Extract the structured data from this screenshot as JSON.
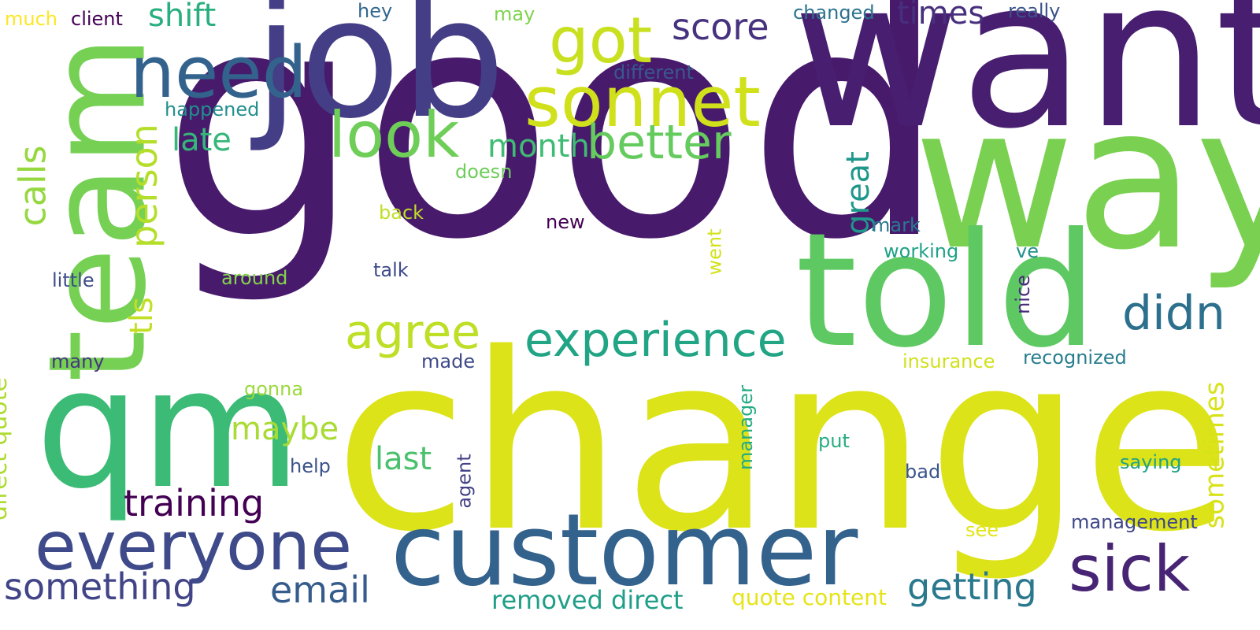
{
  "background": "#ffffff",
  "words": [
    {
      "text": "good",
      "color": "#481a6c",
      "rotated": false
    },
    {
      "text": "change",
      "color": "#dce319",
      "rotated": false
    },
    {
      "text": "want",
      "color": "#481f70",
      "rotated": false
    },
    {
      "text": "way",
      "color": "#7ad151",
      "rotated": false
    },
    {
      "text": "job",
      "color": "#433e85",
      "rotated": false
    },
    {
      "text": "team",
      "color": "#75d054",
      "rotated": true
    },
    {
      "text": "told",
      "color": "#5ec962",
      "rotated": false
    },
    {
      "text": "qm",
      "color": "#3bbb75",
      "rotated": false
    },
    {
      "text": "customer",
      "color": "#33628d",
      "rotated": false
    },
    {
      "text": "everyone",
      "color": "#3e4a89",
      "rotated": false
    },
    {
      "text": "sonnet",
      "color": "#d0e11c",
      "rotated": false
    },
    {
      "text": "need",
      "color": "#33638d",
      "rotated": false
    },
    {
      "text": "got",
      "color": "#c8e020",
      "rotated": false
    },
    {
      "text": "look",
      "color": "#6ece58",
      "rotated": false
    },
    {
      "text": "experience",
      "color": "#21a585",
      "rotated": false
    },
    {
      "text": "sick",
      "color": "#482475",
      "rotated": false
    },
    {
      "text": "better",
      "color": "#65cb5e",
      "rotated": false
    },
    {
      "text": "agree",
      "color": "#bddf26",
      "rotated": false
    },
    {
      "text": "didn",
      "color": "#2d708e",
      "rotated": false
    },
    {
      "text": "getting",
      "color": "#2a788e",
      "rotated": false
    },
    {
      "text": "training",
      "color": "#440154",
      "rotated": false
    },
    {
      "text": "something",
      "color": "#414487",
      "rotated": false
    },
    {
      "text": "email",
      "color": "#365c8d",
      "rotated": false
    },
    {
      "text": "person",
      "color": "#b5de2b",
      "rotated": true
    },
    {
      "text": "calls",
      "color": "#95d840",
      "rotated": true
    },
    {
      "text": "score",
      "color": "#46327e",
      "rotated": false
    },
    {
      "text": "times",
      "color": "#472f7d",
      "rotated": false
    },
    {
      "text": "shift",
      "color": "#29af7f",
      "rotated": false
    },
    {
      "text": "late",
      "color": "#35b779",
      "rotated": false
    },
    {
      "text": "month",
      "color": "#3fbc73",
      "rotated": false
    },
    {
      "text": "maybe",
      "color": "#a8db34",
      "rotated": false
    },
    {
      "text": "last",
      "color": "#4ac16d",
      "rotated": false
    },
    {
      "text": "tls",
      "color": "#c2df23",
      "rotated": true
    },
    {
      "text": "great",
      "color": "#1f988b",
      "rotated": true
    },
    {
      "text": "removed direct",
      "color": "#1f9e89",
      "rotated": false
    },
    {
      "text": "sometimes",
      "color": "#d8e219",
      "rotated": true
    },
    {
      "text": "direct quote",
      "color": "#addc30",
      "rotated": true
    },
    {
      "text": "quote content",
      "color": "#e5e419",
      "rotated": false
    },
    {
      "text": "changed",
      "color": "#2c728e",
      "rotated": false
    },
    {
      "text": "really",
      "color": "#3b528b",
      "rotated": false
    },
    {
      "text": "hey",
      "color": "#31678e",
      "rotated": false
    },
    {
      "text": "may",
      "color": "#7fd34e",
      "rotated": false
    },
    {
      "text": "much",
      "color": "#fde725",
      "rotated": false
    },
    {
      "text": "client",
      "color": "#440154",
      "rotated": false
    },
    {
      "text": "different",
      "color": "#38598c",
      "rotated": false
    },
    {
      "text": "happened",
      "color": "#218f8d",
      "rotated": false
    },
    {
      "text": "doesn",
      "color": "#6ccd5a",
      "rotated": false
    },
    {
      "text": "back",
      "color": "#c0df25",
      "rotated": false
    },
    {
      "text": "new",
      "color": "#440154",
      "rotated": false
    },
    {
      "text": "mark",
      "color": "#2a788e",
      "rotated": false
    },
    {
      "text": "working",
      "color": "#1fa287",
      "rotated": false
    },
    {
      "text": "ve",
      "color": "#21918c",
      "rotated": false
    },
    {
      "text": "went",
      "color": "#d2e21b",
      "rotated": true
    },
    {
      "text": "talk",
      "color": "#3e4989",
      "rotated": false
    },
    {
      "text": "little",
      "color": "#3e4c8a",
      "rotated": false
    },
    {
      "text": "around",
      "color": "#84d44b",
      "rotated": false
    },
    {
      "text": "nice",
      "color": "#482979",
      "rotated": true
    },
    {
      "text": "many",
      "color": "#453781",
      "rotated": false
    },
    {
      "text": "made",
      "color": "#3e4989",
      "rotated": false
    },
    {
      "text": "insurance",
      "color": "#d0e11c",
      "rotated": false
    },
    {
      "text": "recognized",
      "color": "#287d8e",
      "rotated": false
    },
    {
      "text": "gonna",
      "color": "#9bd93c",
      "rotated": false
    },
    {
      "text": "manager",
      "color": "#25ab82",
      "rotated": true
    },
    {
      "text": "put",
      "color": "#26ad81",
      "rotated": false
    },
    {
      "text": "help",
      "color": "#3b528b",
      "rotated": false
    },
    {
      "text": "agent",
      "color": "#424086",
      "rotated": true
    },
    {
      "text": "bad",
      "color": "#3a548c",
      "rotated": false
    },
    {
      "text": "saying",
      "color": "#20a386",
      "rotated": false
    },
    {
      "text": "see",
      "color": "#e2e418",
      "rotated": false
    },
    {
      "text": "management",
      "color": "#3f4788",
      "rotated": false
    }
  ]
}
